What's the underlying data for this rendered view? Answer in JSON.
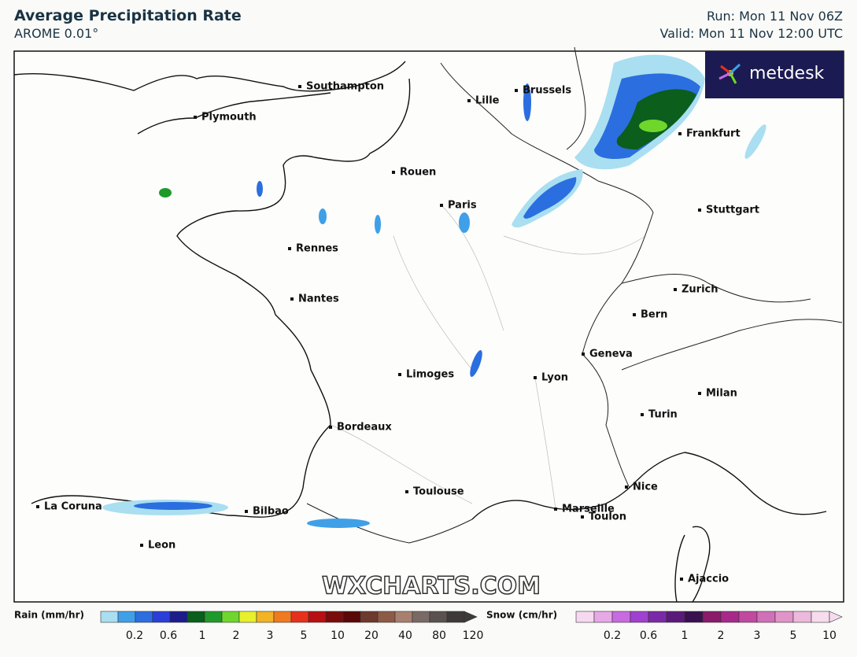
{
  "header": {
    "title": "Average Precipitation Rate",
    "subtitle": "AROME 0.01°",
    "run": "Run: Mon 11 Nov 06Z",
    "valid": "Valid: Mon 11 Nov 12:00 UTC"
  },
  "logo": "metdesk",
  "watermark": "WXCHARTS.COM",
  "cities": [
    "Southampton",
    "Plymouth",
    "Lille",
    "Brussels",
    "Rouen",
    "Frankfurt",
    "Paris",
    "Stuttgart",
    "Rennes",
    "Nantes",
    "Zurich",
    "Bern",
    "Geneva",
    "Limoges",
    "Lyon",
    "Milan",
    "Turin",
    "Bordeaux",
    "Toulouse",
    "Nice",
    "Marseille",
    "Toulon",
    "La Coruna",
    "Bilbao",
    "Leon",
    "Ajaccio"
  ],
  "legend": {
    "rain": {
      "label": "Rain (mm/hr)",
      "ticks": [
        0.2,
        0.6,
        1,
        2,
        3,
        5,
        10,
        20,
        40,
        80,
        120
      ],
      "colors": [
        "#a9dff0",
        "#3fa0e8",
        "#2b6ee0",
        "#2a3fd8",
        "#1c1c8c",
        "#0b5e1c",
        "#1f9a2a",
        "#6fd62c",
        "#e7f02a",
        "#f2b324",
        "#f07a20",
        "#e6321c",
        "#b80f12",
        "#7a0c0c",
        "#5a0808",
        "#6e3a2e",
        "#8c5a46",
        "#a88070",
        "#7a6a66",
        "#5a5250",
        "#3e3a3a"
      ]
    },
    "snow": {
      "label": "Snow (cm/hr)",
      "ticks": [
        0.2,
        0.6,
        1,
        2,
        3,
        5,
        10
      ],
      "colors": [
        "#f6d8f0",
        "#e6a8e6",
        "#c86ae0",
        "#a040d0",
        "#7a2aa8",
        "#5a1a7a",
        "#3a1050",
        "#8a1a6a",
        "#a8288a",
        "#c04aa0",
        "#d070b8",
        "#e094c8",
        "#ecb8dc",
        "#f6dcee"
      ]
    }
  }
}
